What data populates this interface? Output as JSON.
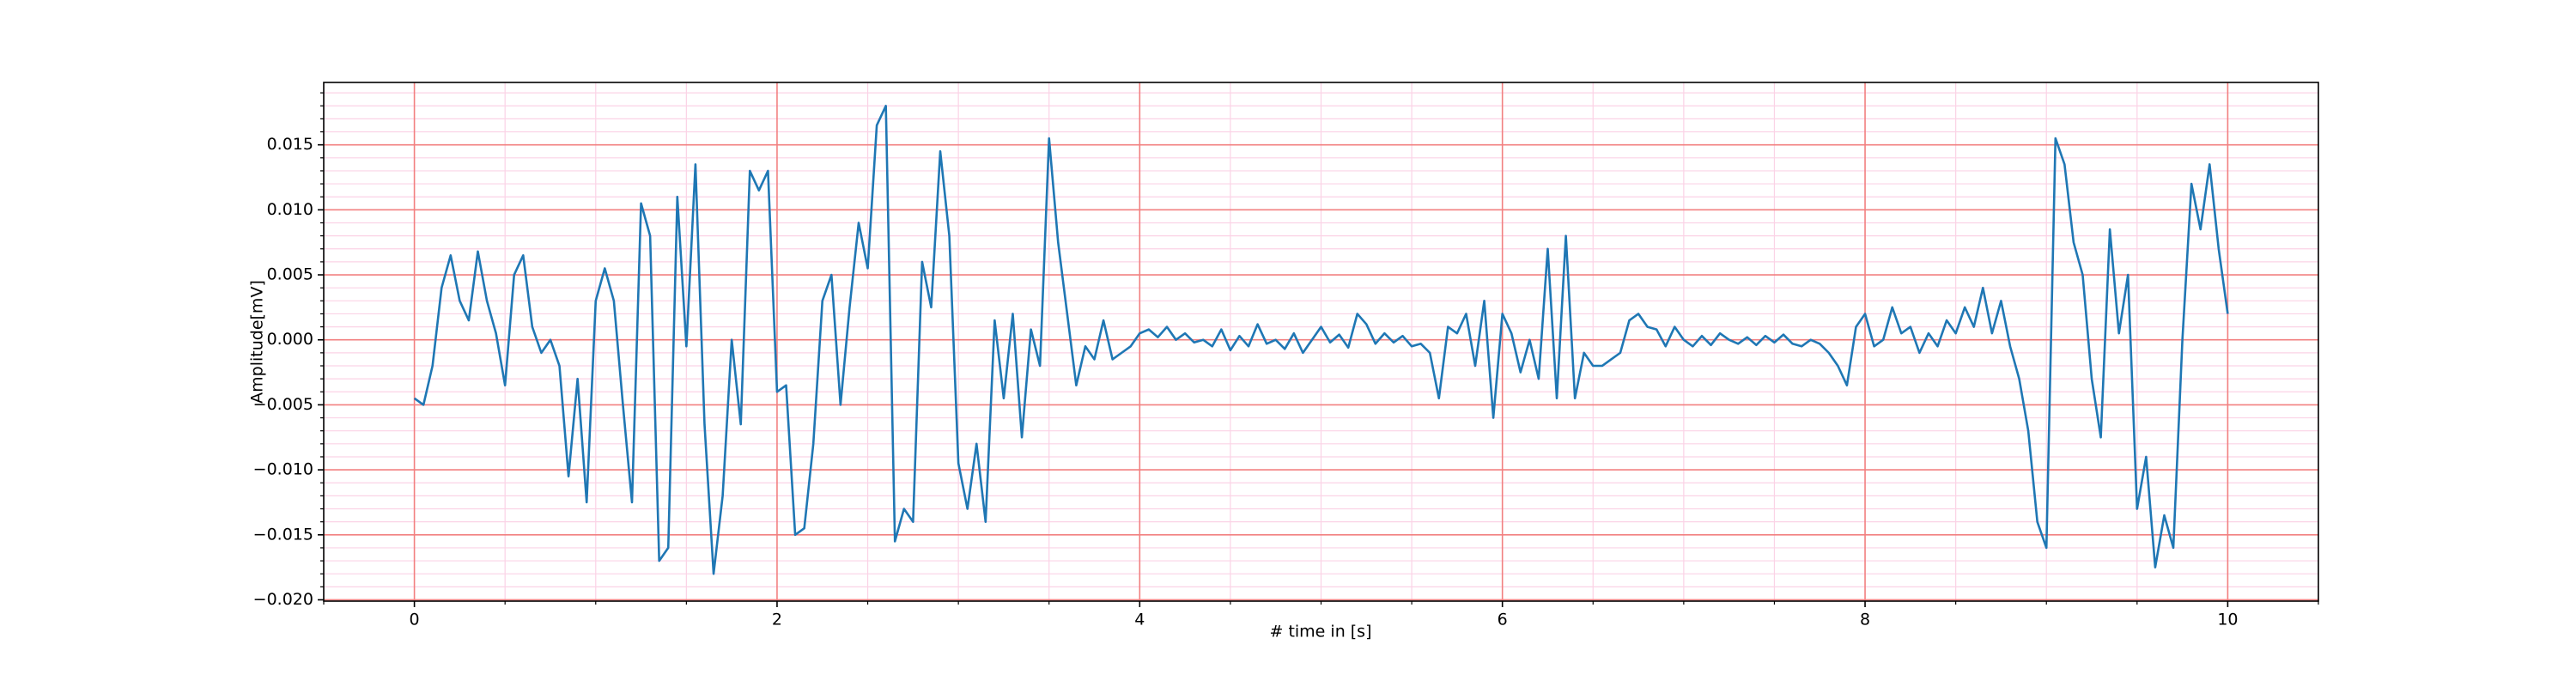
{
  "chart_data": {
    "type": "line",
    "xlabel": "# time in [s]",
    "ylabel": "Amplitude[mV]",
    "xlim": [
      -0.5,
      10.5
    ],
    "ylim": [
      -0.0201,
      0.0198
    ],
    "xticks": [
      0,
      2,
      4,
      6,
      8,
      10
    ],
    "yticks": [
      {
        "value": -0.02,
        "label": "−0.020"
      },
      {
        "value": -0.015,
        "label": "−0.015"
      },
      {
        "value": -0.01,
        "label": "−0.010"
      },
      {
        "value": -0.005,
        "label": "−0.005"
      },
      {
        "value": 0,
        "label": "0.000"
      },
      {
        "value": 0.005,
        "label": "0.005"
      },
      {
        "value": 0.01,
        "label": "0.010"
      },
      {
        "value": 0.015,
        "label": "0.015"
      }
    ],
    "xticks_minor": [
      -0.5,
      0.5,
      1,
      1.5,
      2.5,
      3,
      3.5,
      4.5,
      5,
      5.5,
      6.5,
      7,
      7.5,
      8.5,
      9,
      9.5,
      10.5
    ],
    "yticks_minor": [
      -0.019,
      -0.018,
      -0.017,
      -0.016,
      -0.014,
      -0.013,
      -0.012,
      -0.011,
      -0.009,
      -0.008,
      -0.007,
      -0.006,
      -0.004,
      -0.003,
      -0.002,
      -0.001,
      0.001,
      0.002,
      0.003,
      0.004,
      0.006,
      0.007,
      0.008,
      0.009,
      0.011,
      0.012,
      0.013,
      0.014,
      0.016,
      0.017,
      0.018,
      0.019
    ],
    "grid": true,
    "grid_major_color": "#f28080",
    "grid_minor_color": "#fbd3e6",
    "x": [
      0,
      0.05,
      0.1,
      0.15,
      0.2,
      0.25,
      0.3,
      0.35,
      0.4,
      0.45,
      0.5,
      0.55,
      0.6,
      0.65,
      0.7,
      0.75,
      0.8,
      0.85,
      0.9,
      0.95,
      1,
      1.05,
      1.1,
      1.15,
      1.2,
      1.25,
      1.3,
      1.35,
      1.4,
      1.45,
      1.5,
      1.55,
      1.6,
      1.65,
      1.7,
      1.75,
      1.8,
      1.85,
      1.9,
      1.95,
      2,
      2.05,
      2.1,
      2.15,
      2.2,
      2.25,
      2.3,
      2.35,
      2.4,
      2.45,
      2.5,
      2.55,
      2.6,
      2.65,
      2.7,
      2.75,
      2.8,
      2.85,
      2.9,
      2.95,
      3,
      3.05,
      3.1,
      3.15,
      3.2,
      3.25,
      3.3,
      3.35,
      3.4,
      3.45,
      3.5,
      3.55,
      3.6,
      3.65,
      3.7,
      3.75,
      3.8,
      3.85,
      3.9,
      3.95,
      4,
      4.05,
      4.1,
      4.15,
      4.2,
      4.25,
      4.3,
      4.35,
      4.4,
      4.45,
      4.5,
      4.55,
      4.6,
      4.65,
      4.7,
      4.75,
      4.8,
      4.85,
      4.9,
      4.95,
      5,
      5.05,
      5.1,
      5.15,
      5.2,
      5.25,
      5.3,
      5.35,
      5.4,
      5.45,
      5.5,
      5.55,
      5.6,
      5.65,
      5.7,
      5.75,
      5.8,
      5.85,
      5.9,
      5.95,
      6,
      6.05,
      6.1,
      6.15,
      6.2,
      6.25,
      6.3,
      6.35,
      6.4,
      6.45,
      6.5,
      6.55,
      6.6,
      6.65,
      6.7,
      6.75,
      6.8,
      6.85,
      6.9,
      6.95,
      7,
      7.05,
      7.1,
      7.15,
      7.2,
      7.25,
      7.3,
      7.35,
      7.4,
      7.45,
      7.5,
      7.55,
      7.6,
      7.65,
      7.7,
      7.75,
      7.8,
      7.85,
      7.9,
      7.95,
      8,
      8.05,
      8.1,
      8.15,
      8.2,
      8.25,
      8.3,
      8.35,
      8.4,
      8.45,
      8.5,
      8.55,
      8.6,
      8.65,
      8.7,
      8.75,
      8.8,
      8.85,
      8.9,
      8.95,
      9,
      9.05,
      9.1,
      9.15,
      9.2,
      9.25,
      9.3,
      9.35,
      9.4,
      9.45,
      9.5,
      9.55,
      9.6,
      9.65,
      9.7,
      9.75,
      9.8,
      9.85,
      9.9,
      9.95,
      10
    ],
    "series": [
      {
        "color": "#1f77b4",
        "values": [
          -0.0045,
          -0.005,
          -0.002,
          0.004,
          0.0065,
          0.003,
          0.0015,
          0.0068,
          0.003,
          0.0005,
          -0.0035,
          0.005,
          0.0065,
          0.001,
          -0.001,
          0,
          -0.002,
          -0.0105,
          -0.003,
          -0.0125,
          0.003,
          0.0055,
          0.003,
          -0.005,
          -0.0125,
          0.0105,
          0.008,
          -0.017,
          -0.016,
          0.011,
          -0.0005,
          0.0135,
          -0.0065,
          -0.018,
          -0.012,
          0,
          -0.0065,
          0.013,
          0.0115,
          0.013,
          -0.004,
          -0.0035,
          -0.015,
          -0.0145,
          -0.008,
          0.003,
          0.005,
          -0.005,
          0.0025,
          0.009,
          0.0055,
          0.0165,
          0.018,
          -0.0155,
          -0.013,
          -0.014,
          0.006,
          0.0025,
          0.0145,
          0.008,
          -0.0095,
          -0.013,
          -0.008,
          -0.014,
          0.0015,
          -0.0045,
          0.002,
          -0.0075,
          0.0008,
          -0.002,
          0.0155,
          0.0075,
          0.002,
          -0.0035,
          -0.0005,
          -0.0015,
          0.0015,
          -0.0015,
          -0.001,
          -0.0005,
          0.0005,
          0.0008,
          0.0002,
          0.001,
          0,
          0.0005,
          -0.0002,
          0,
          -0.0005,
          0.0008,
          -0.0008,
          0.0003,
          -0.0005,
          0.0012,
          -0.0003,
          0,
          -0.0007,
          0.0005,
          -0.001,
          0,
          0.001,
          -0.0002,
          0.0004,
          -0.0006,
          0.002,
          0.0012,
          -0.0003,
          0.0005,
          -0.0002,
          0.0003,
          -0.0005,
          -0.0003,
          -0.001,
          -0.0045,
          0.001,
          0.0005,
          0.002,
          -0.002,
          0.003,
          -0.006,
          0.002,
          0.0005,
          -0.0025,
          0,
          -0.003,
          0.007,
          -0.0045,
          0.008,
          -0.0045,
          -0.001,
          -0.002,
          -0.002,
          -0.0015,
          -0.001,
          0.0015,
          0.002,
          0.001,
          0.0008,
          -0.0005,
          0.001,
          0,
          -0.0005,
          0.0003,
          -0.0004,
          0.0005,
          0,
          -0.0003,
          0.0002,
          -0.0004,
          0.0003,
          -0.0002,
          0.0004,
          -0.0003,
          -0.0005,
          0,
          -0.0003,
          -0.001,
          -0.002,
          -0.0035,
          0.001,
          0.002,
          -0.0005,
          0,
          0.0025,
          0.0005,
          0.001,
          -0.001,
          0.0005,
          -0.0005,
          0.0015,
          0.0005,
          0.0025,
          0.001,
          0.004,
          0.0005,
          0.003,
          -0.0005,
          -0.003,
          -0.007,
          -0.014,
          -0.016,
          0.0155,
          0.0135,
          0.0075,
          0.005,
          -0.003,
          -0.0075,
          0.0085,
          0.0005,
          0.005,
          -0.013,
          -0.009,
          -0.0175,
          -0.0135,
          -0.016,
          0,
          0.012,
          0.0085,
          0.0135,
          0.007,
          0.002
        ]
      }
    ]
  }
}
